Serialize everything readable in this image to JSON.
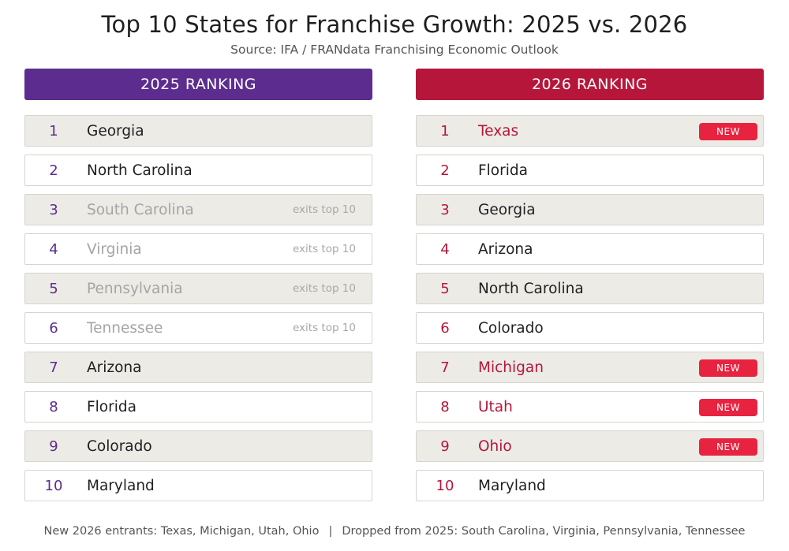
{
  "title": "Top 10 States for Franchise Growth: 2025 vs. 2026",
  "subtitle": "Source: IFA / FRANdata Franchising Economic Outlook",
  "left": {
    "header": "2025 RANKING",
    "items": [
      {
        "rank": "1",
        "state": "Georgia",
        "note": ""
      },
      {
        "rank": "2",
        "state": "North Carolina",
        "note": ""
      },
      {
        "rank": "3",
        "state": "South Carolina",
        "note": "exits top 10"
      },
      {
        "rank": "4",
        "state": "Virginia",
        "note": "exits top 10"
      },
      {
        "rank": "5",
        "state": "Pennsylvania",
        "note": "exits top 10"
      },
      {
        "rank": "6",
        "state": "Tennessee",
        "note": "exits top 10"
      },
      {
        "rank": "7",
        "state": "Arizona",
        "note": ""
      },
      {
        "rank": "8",
        "state": "Florida",
        "note": ""
      },
      {
        "rank": "9",
        "state": "Colorado",
        "note": ""
      },
      {
        "rank": "10",
        "state": "Maryland",
        "note": ""
      }
    ]
  },
  "right": {
    "header": "2026 RANKING",
    "items": [
      {
        "rank": "1",
        "state": "Texas",
        "badge": "NEW"
      },
      {
        "rank": "2",
        "state": "Florida",
        "badge": ""
      },
      {
        "rank": "3",
        "state": "Georgia",
        "badge": ""
      },
      {
        "rank": "4",
        "state": "Arizona",
        "badge": ""
      },
      {
        "rank": "5",
        "state": "North Carolina",
        "badge": ""
      },
      {
        "rank": "6",
        "state": "Colorado",
        "badge": ""
      },
      {
        "rank": "7",
        "state": "Michigan",
        "badge": "NEW"
      },
      {
        "rank": "8",
        "state": "Utah",
        "badge": "NEW"
      },
      {
        "rank": "9",
        "state": "Ohio",
        "badge": "NEW"
      },
      {
        "rank": "10",
        "state": "Maryland",
        "badge": ""
      }
    ]
  },
  "footer": {
    "entrants": "New 2026 entrants: Texas, Michigan, Utah, Ohio",
    "separator": "|",
    "dropped": "Dropped from 2025: South Carolina, Virginia, Pennsylvania, Tennessee"
  },
  "colors": {
    "purple": "#5c2d8e",
    "crimson": "#b5163a",
    "badge_red": "#e8233f",
    "row_shade": "#ecebe6"
  }
}
